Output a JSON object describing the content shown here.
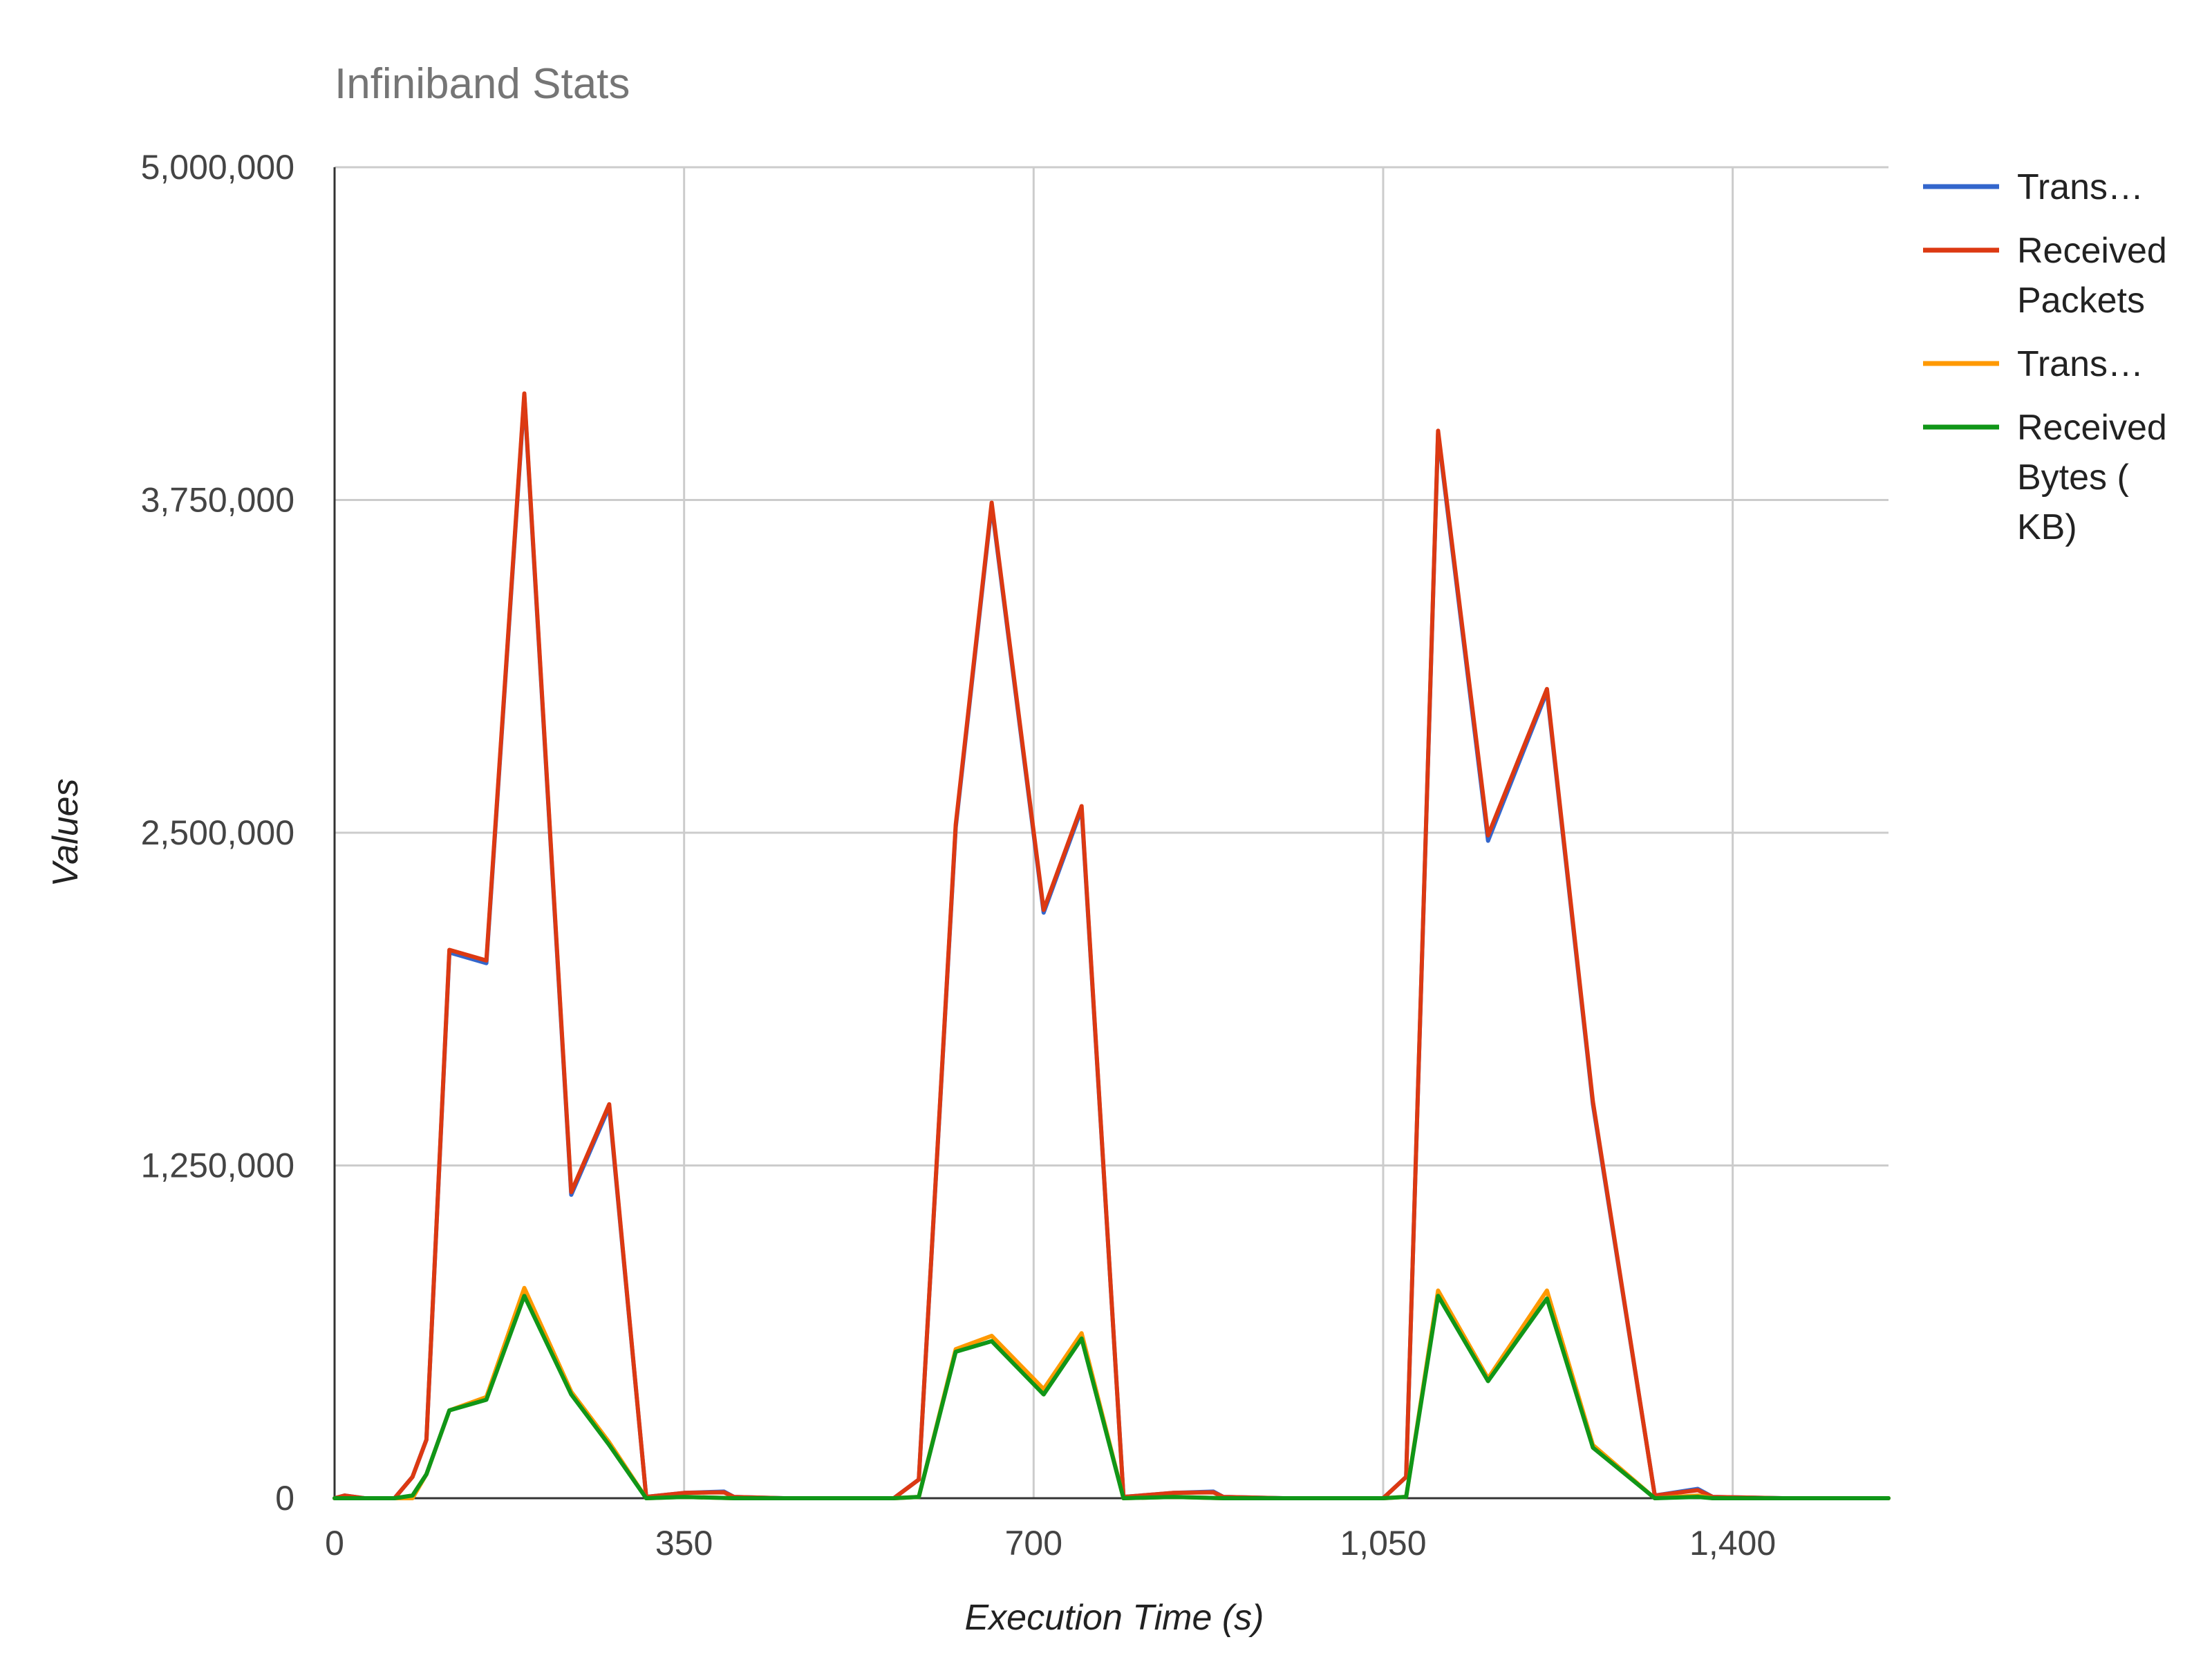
{
  "chart_data": {
    "type": "line",
    "title": "Infiniband Stats",
    "xlabel": "Execution Time (s)",
    "ylabel": "Values",
    "xlim": [
      0,
      1556
    ],
    "ylim": [
      0,
      5000000
    ],
    "x_ticks": [
      0,
      350,
      700,
      1050,
      1400
    ],
    "x_tick_labels": [
      "0",
      "350",
      "700",
      "1,050",
      "1,400"
    ],
    "y_ticks": [
      0,
      1250000,
      2500000,
      3750000,
      5000000
    ],
    "y_tick_labels": [
      "0",
      "1,250,000",
      "2,500,000",
      "3,750,000",
      "5,000,000"
    ],
    "grid": true,
    "legend_position": "right",
    "series": [
      {
        "name": "Trans…",
        "color": "#3366cc",
        "points": [
          [
            0,
            0
          ],
          [
            10,
            10000
          ],
          [
            30,
            0
          ],
          [
            60,
            0
          ],
          [
            78,
            80000
          ],
          [
            92,
            220000
          ],
          [
            115,
            2050000
          ],
          [
            152,
            2010000
          ],
          [
            190,
            4140000
          ],
          [
            237,
            1140000
          ],
          [
            275,
            1470000
          ],
          [
            312,
            5000
          ],
          [
            350,
            20000
          ],
          [
            390,
            25000
          ],
          [
            400,
            5000
          ],
          [
            450,
            0
          ],
          [
            500,
            0
          ],
          [
            560,
            0
          ],
          [
            585,
            70000
          ],
          [
            622,
            2520000
          ],
          [
            658,
            3730000
          ],
          [
            710,
            2200000
          ],
          [
            748,
            2590000
          ],
          [
            790,
            5000
          ],
          [
            840,
            20000
          ],
          [
            880,
            25000
          ],
          [
            890,
            5000
          ],
          [
            950,
            0
          ],
          [
            1000,
            0
          ],
          [
            1050,
            0
          ],
          [
            1073,
            80000
          ],
          [
            1105,
            4000000
          ],
          [
            1155,
            2470000
          ],
          [
            1214,
            3030000
          ],
          [
            1260,
            1480000
          ],
          [
            1322,
            10000
          ],
          [
            1365,
            35000
          ],
          [
            1380,
            5000
          ],
          [
            1450,
            0
          ],
          [
            1556,
            0
          ]
        ]
      },
      {
        "name": "Received Packets",
        "color": "#dc3912",
        "points": [
          [
            0,
            0
          ],
          [
            10,
            10000
          ],
          [
            30,
            0
          ],
          [
            60,
            0
          ],
          [
            78,
            80000
          ],
          [
            92,
            220000
          ],
          [
            115,
            2060000
          ],
          [
            152,
            2020000
          ],
          [
            190,
            4150000
          ],
          [
            237,
            1150000
          ],
          [
            275,
            1480000
          ],
          [
            312,
            5000
          ],
          [
            350,
            20000
          ],
          [
            390,
            22000
          ],
          [
            400,
            5000
          ],
          [
            450,
            0
          ],
          [
            500,
            0
          ],
          [
            560,
            0
          ],
          [
            585,
            70000
          ],
          [
            622,
            2530000
          ],
          [
            658,
            3740000
          ],
          [
            710,
            2210000
          ],
          [
            748,
            2600000
          ],
          [
            790,
            5000
          ],
          [
            840,
            20000
          ],
          [
            880,
            22000
          ],
          [
            890,
            5000
          ],
          [
            950,
            0
          ],
          [
            1000,
            0
          ],
          [
            1050,
            0
          ],
          [
            1073,
            80000
          ],
          [
            1105,
            4010000
          ],
          [
            1155,
            2490000
          ],
          [
            1214,
            3040000
          ],
          [
            1260,
            1490000
          ],
          [
            1322,
            10000
          ],
          [
            1365,
            30000
          ],
          [
            1380,
            5000
          ],
          [
            1450,
            0
          ],
          [
            1556,
            0
          ]
        ]
      },
      {
        "name": "Trans…",
        "color": "#ff9900",
        "points": [
          [
            0,
            0
          ],
          [
            30,
            0
          ],
          [
            60,
            0
          ],
          [
            78,
            0
          ],
          [
            92,
            90000
          ],
          [
            115,
            330000
          ],
          [
            152,
            380000
          ],
          [
            190,
            790000
          ],
          [
            237,
            400000
          ],
          [
            275,
            210000
          ],
          [
            312,
            0
          ],
          [
            350,
            5000
          ],
          [
            400,
            0
          ],
          [
            560,
            0
          ],
          [
            585,
            5000
          ],
          [
            622,
            560000
          ],
          [
            658,
            610000
          ],
          [
            710,
            410000
          ],
          [
            748,
            620000
          ],
          [
            790,
            0
          ],
          [
            840,
            5000
          ],
          [
            890,
            0
          ],
          [
            1050,
            0
          ],
          [
            1073,
            5000
          ],
          [
            1105,
            780000
          ],
          [
            1155,
            450000
          ],
          [
            1214,
            780000
          ],
          [
            1260,
            200000
          ],
          [
            1322,
            0
          ],
          [
            1365,
            10000
          ],
          [
            1380,
            0
          ],
          [
            1556,
            0
          ]
        ]
      },
      {
        "name": "Received Bytes ( KB)",
        "color": "#109618",
        "points": [
          [
            0,
            0
          ],
          [
            30,
            0
          ],
          [
            60,
            0
          ],
          [
            78,
            10000
          ],
          [
            92,
            90000
          ],
          [
            115,
            330000
          ],
          [
            152,
            370000
          ],
          [
            190,
            760000
          ],
          [
            237,
            390000
          ],
          [
            275,
            200000
          ],
          [
            312,
            0
          ],
          [
            350,
            5000
          ],
          [
            400,
            0
          ],
          [
            560,
            0
          ],
          [
            585,
            5000
          ],
          [
            622,
            550000
          ],
          [
            658,
            590000
          ],
          [
            710,
            390000
          ],
          [
            748,
            600000
          ],
          [
            790,
            0
          ],
          [
            840,
            5000
          ],
          [
            890,
            0
          ],
          [
            1050,
            0
          ],
          [
            1073,
            5000
          ],
          [
            1105,
            760000
          ],
          [
            1155,
            440000
          ],
          [
            1214,
            750000
          ],
          [
            1260,
            190000
          ],
          [
            1322,
            0
          ],
          [
            1365,
            5000
          ],
          [
            1380,
            0
          ],
          [
            1556,
            0
          ]
        ]
      }
    ],
    "legend": [
      {
        "lines": [
          "Trans…"
        ],
        "color": "#3366cc"
      },
      {
        "lines": [
          "Received",
          "Packets"
        ],
        "color": "#dc3912"
      },
      {
        "lines": [
          "Trans…"
        ],
        "color": "#ff9900"
      },
      {
        "lines": [
          "Received",
          "Bytes (",
          "KB)"
        ],
        "color": "#109618"
      }
    ]
  }
}
